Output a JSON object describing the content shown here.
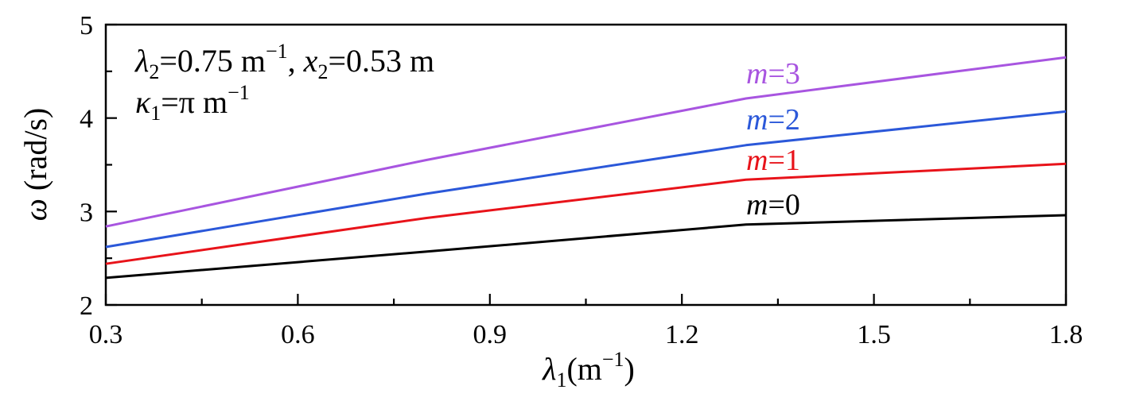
{
  "chart_data": {
    "type": "line",
    "xlim": [
      0.3,
      1.8
    ],
    "ylim": [
      2,
      5
    ],
    "x_ticks": [
      "0.3",
      "0.6",
      "0.9",
      "1.2",
      "1.5",
      "1.8"
    ],
    "y_ticks": [
      "2",
      "3",
      "4",
      "5"
    ],
    "xlabel": {
      "symbol": "λ",
      "sub": "1",
      "unit_base": "(m",
      "unit_sup": "−1",
      "unit_end": ")"
    },
    "ylabel": {
      "symbol": "ω",
      "unit": " (rad/s)"
    },
    "annotation": {
      "line1": {
        "lam": "λ",
        "lam_sub": "2",
        "lam_val": "=0.75 m",
        "lam_sup": "−1",
        "sep": ", ",
        "x": "x",
        "x_sub": "2",
        "x_val": "=0.53 m"
      },
      "line2": {
        "kap": "κ",
        "kap_sub": "1",
        "kap_val": "=π m",
        "kap_sup": "−1"
      }
    },
    "series": [
      {
        "name": "m=0",
        "name_m": "m",
        "name_val": "=0",
        "color": "#000000",
        "x": [
          0.3,
          0.8,
          1.3,
          1.8
        ],
        "y": [
          2.29,
          2.57,
          2.86,
          2.96
        ]
      },
      {
        "name": "m=1",
        "name_m": "m",
        "name_val": "=1",
        "color": "#e8131a",
        "x": [
          0.3,
          0.8,
          1.3,
          1.8
        ],
        "y": [
          2.44,
          2.93,
          3.34,
          3.51
        ]
      },
      {
        "name": "m=2",
        "name_m": "m",
        "name_val": "=2",
        "color": "#2b58d9",
        "x": [
          0.3,
          0.8,
          1.3,
          1.8
        ],
        "y": [
          2.62,
          3.19,
          3.71,
          4.07
        ]
      },
      {
        "name": "m=3",
        "name_m": "m",
        "name_val": "=3",
        "color": "#a855e0",
        "x": [
          0.3,
          0.8,
          1.3,
          1.8
        ],
        "y": [
          2.84,
          3.55,
          4.21,
          4.65
        ]
      }
    ]
  }
}
